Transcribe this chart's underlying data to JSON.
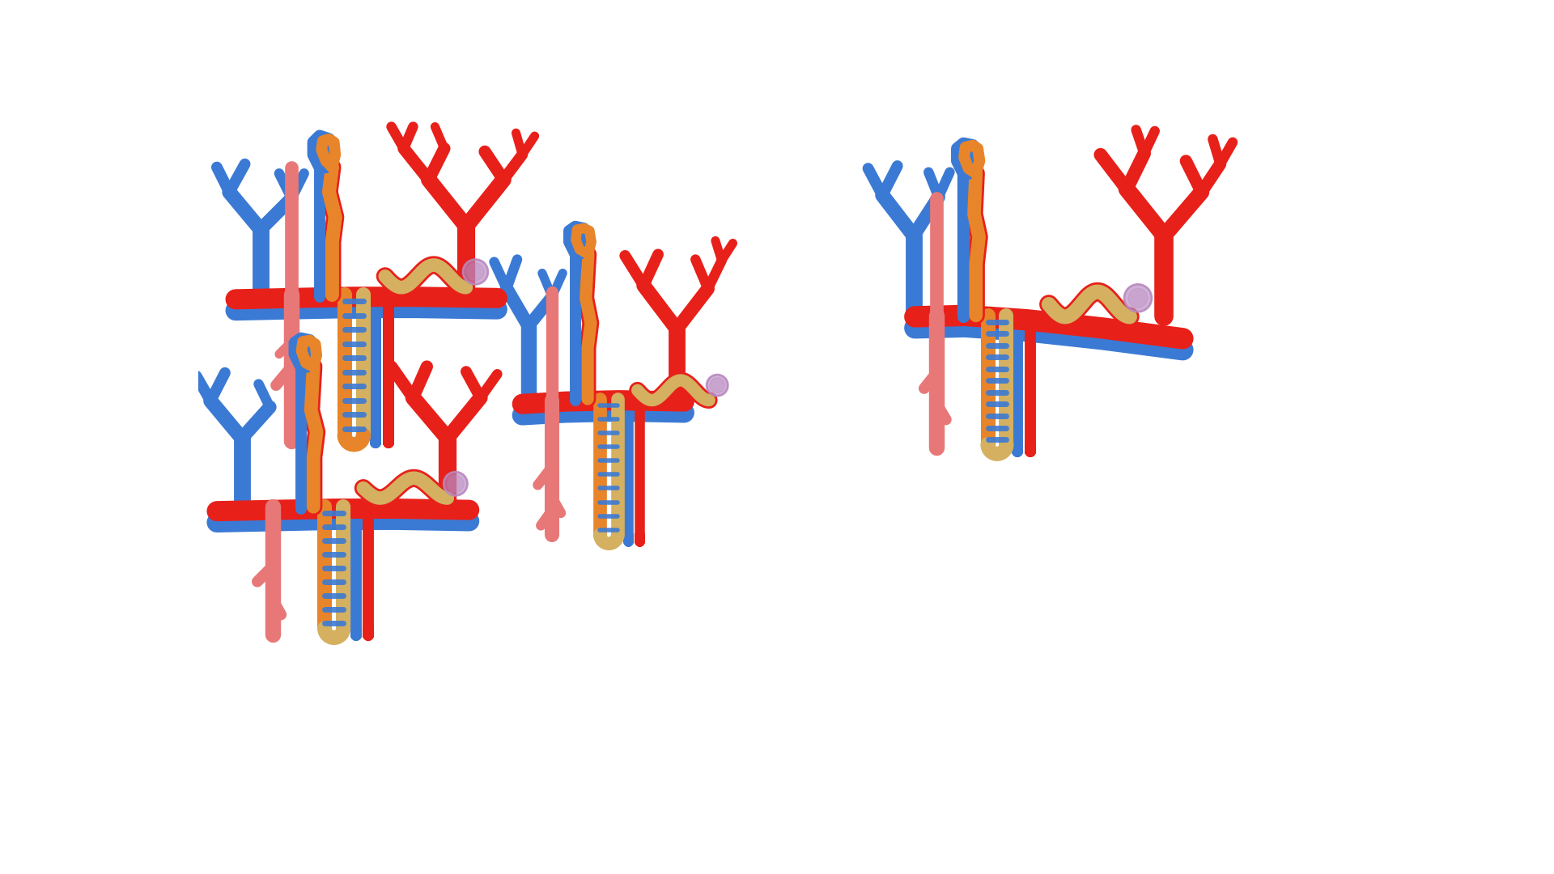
{
  "background_color": "#ffffff",
  "red": "#e8201a",
  "blue": "#3b7ad4",
  "orange": "#e8852a",
  "yellow_tan": "#d4b060",
  "salmon": "#e87878",
  "purple": "#b888c0",
  "lw_vessel": 14,
  "lw_tubule": 10,
  "lw_branch": 10,
  "lw_thin": 6
}
